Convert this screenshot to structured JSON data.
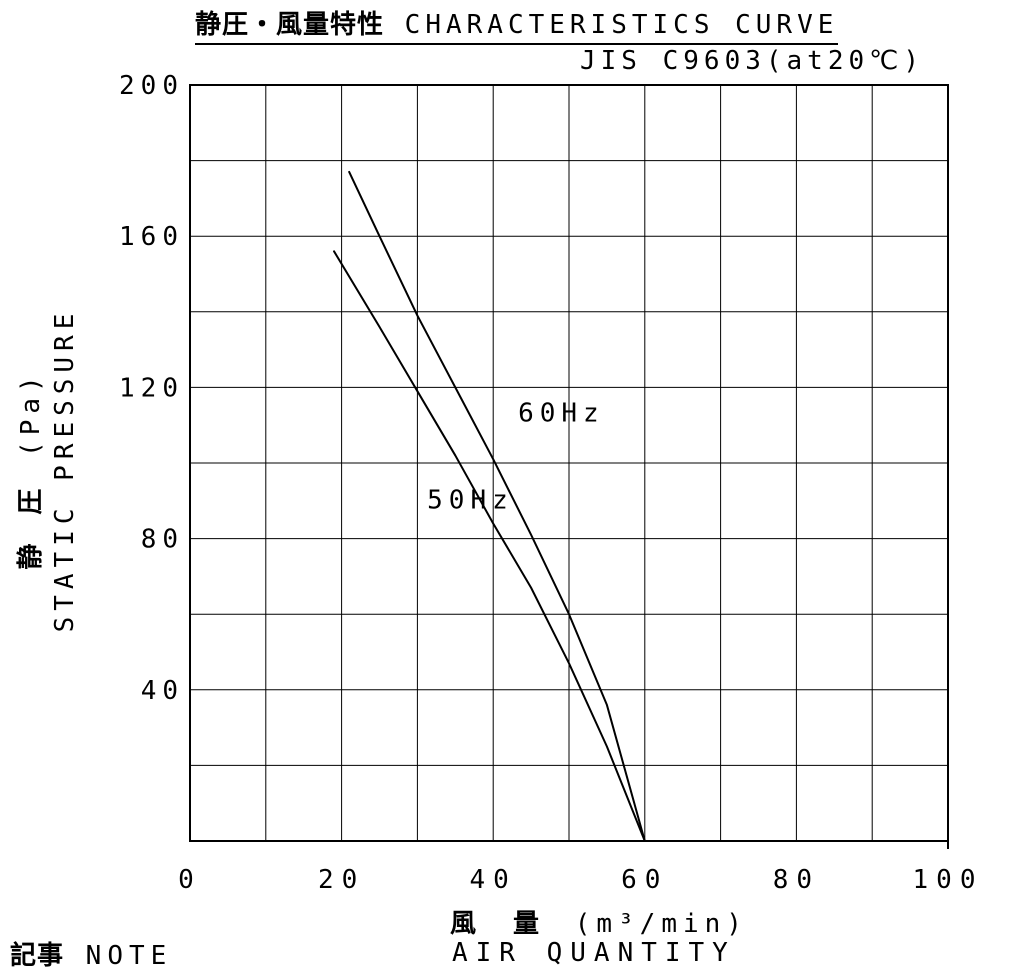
{
  "chart_data": {
    "type": "line",
    "title_jp": "静圧・風量特性",
    "title_en": "CHARACTERISTICS CURVE",
    "subtitle": "JIS C9603(at20℃)",
    "xlabel_jp": "風 量",
    "xlabel_unit": "(m³/min)",
    "xlabel_en": "AIR QUANTITY",
    "ylabel_jp": "静 圧",
    "ylabel_unit": "(Pa)",
    "ylabel_en": "STATIC PRESSURE",
    "xlim": [
      0,
      100
    ],
    "ylim": [
      0,
      200
    ],
    "x_ticks": [
      "0",
      "20",
      "40",
      "60",
      "80",
      "100"
    ],
    "y_ticks": [
      "40",
      "80",
      "120",
      "160",
      "200"
    ],
    "grid": true,
    "series": [
      {
        "name": "60Hz",
        "x": [
          21,
          25,
          30,
          35,
          40,
          45,
          50,
          55,
          60
        ],
        "y": [
          177,
          160,
          139,
          120,
          101,
          81,
          60,
          36,
          0
        ]
      },
      {
        "name": "50Hz",
        "x": [
          19,
          25,
          30,
          35,
          40,
          45,
          50,
          55,
          60
        ],
        "y": [
          156,
          136,
          119,
          102,
          84,
          67,
          47,
          25,
          0
        ]
      }
    ],
    "annotations": [
      {
        "text": "60Hz",
        "x": 49,
        "y": 111
      },
      {
        "text": "50Hz",
        "x": 37,
        "y": 88
      }
    ]
  },
  "note_jp": "記事",
  "note_en": "NOTE"
}
